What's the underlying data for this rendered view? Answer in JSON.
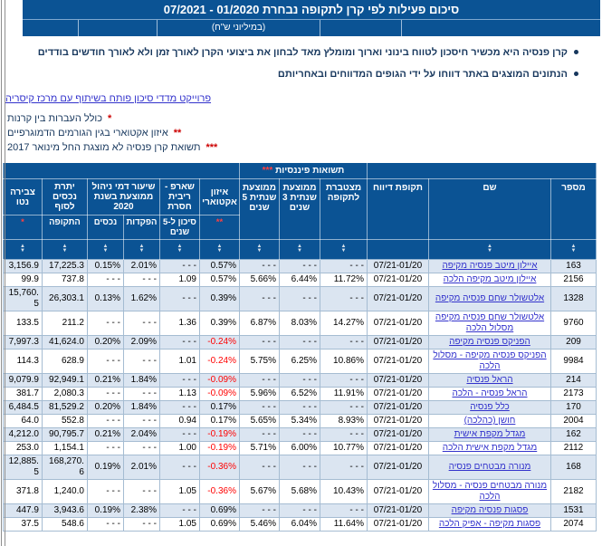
{
  "page": {
    "title": "סיכום פעילות לפי קרן לתקופה נבחרת 01/2020 - 07/2021",
    "subtitle": "(במיליוני ש\"ח)",
    "bullets": [
      "קרן פנסיה היא מכשיר חיסכון לטווח בינוני וארוך ומומלץ מאד לבחון את ביצועי הקרן לאורך זמן ולא לאורך חודשים בודדים",
      "הנתונים המוצגים באתר דווחו על ידי הגופים המדווחים ובאחריותם"
    ],
    "project_link": "פרוייקט מדדי סיכון פותח בשיתוף עם מרכז קיסריה",
    "footnotes": [
      {
        "mark": "*",
        "text": "כולל העברות בין קרנות"
      },
      {
        "mark": "**",
        "text": "איזון אקטוארי בגין הגורמים הדמוגרפיים"
      },
      {
        "mark": "***",
        "text": "תשואת קרן פנסיה לא מוצגת החל מינואר 2017"
      }
    ]
  },
  "colors": {
    "header_blue": "#0b5394",
    "row_stripe": "#dbe5f1",
    "link_blue": "#3333cc",
    "negative_red": "#ff0000",
    "footnote_red": "#cc0000",
    "text_navy": "#17375d",
    "header_mark_red": "#ff4040"
  },
  "table": {
    "headers": {
      "num": "מספר",
      "name": "שם",
      "period": "תקופת דיווח",
      "returns_group": "תשואות פיננסיות",
      "returns_mark": "***",
      "cumulative": "מצטברת לתקופה",
      "avg3": "ממוצעת שנתית 3 שנים",
      "avg5": "ממוצעת שנתית 5 שנים",
      "actuarial": "איזון אקטוארי",
      "actuarial_mark": "**",
      "sharpe": "שארפ - ריבית חסרת",
      "sharpe_sub": "סיכון ל-5 שנים",
      "fees_group": "שיעור דמי ניהול ממוצעת בשנת 2020",
      "fee_deposits": "הפקדות",
      "fee_assets": "נכסים",
      "assets": "יתרת נכסים לסוף",
      "assets_sub": "התקופה",
      "net": "צבירה נטו",
      "net_mark": "*"
    },
    "rows": [
      {
        "num": "163",
        "name": "איילון מיטב פנסיה מקיפה",
        "period": "07/21-01/20",
        "cum": "- - -",
        "y3": "- - -",
        "y5": "- - -",
        "act": "0.57%",
        "sharpe": "- - -",
        "fdep": "2.01%",
        "fast": "0.15%",
        "assets": "17,225.3",
        "net": "3,156.9"
      },
      {
        "num": "2156",
        "name": "איילון מיטב מקיפה הלכה",
        "period": "07/21-01/20",
        "cum": "11.72%",
        "y3": "6.44%",
        "y5": "5.66%",
        "act": "0.57%",
        "sharpe": "1.09",
        "fdep": "- - -",
        "fast": "- - -",
        "assets": "737.8",
        "net": "99.9"
      },
      {
        "num": "1328",
        "name": "אלטשולר שחם פנסיה מקיפה",
        "period": "07/21-01/20",
        "cum": "- - -",
        "y3": "- - -",
        "y5": "- - -",
        "act": "0.39%",
        "sharpe": "- - -",
        "fdep": "1.62%",
        "fast": "0.13%",
        "assets": "26,303.1",
        "net": "15,760.5"
      },
      {
        "num": "9760",
        "name": "אלטשולר שחם פנסיה מקיפה מסלול הלכה",
        "period": "07/21-01/20",
        "cum": "14.27%",
        "y3": "8.03%",
        "y5": "6.87%",
        "act": "0.39%",
        "sharpe": "1.36",
        "fdep": "- - -",
        "fast": "- - -",
        "assets": "211.2",
        "net": "133.5"
      },
      {
        "num": "209",
        "name": "הפניקס פנסיה מקיפה",
        "period": "07/21-01/20",
        "cum": "- - -",
        "y3": "- - -",
        "y5": "- - -",
        "act": "-0.24%",
        "sharpe": "- - -",
        "fdep": "2.09%",
        "fast": "0.20%",
        "assets": "41,624.0",
        "net": "7,997.3"
      },
      {
        "num": "9984",
        "name": "הפניקס פנסיה מקיפה - מסלול הלכה",
        "period": "07/21-01/20",
        "cum": "10.86%",
        "y3": "6.25%",
        "y5": "5.75%",
        "act": "-0.24%",
        "sharpe": "1.01",
        "fdep": "- - -",
        "fast": "- - -",
        "assets": "628.9",
        "net": "114.3"
      },
      {
        "num": "214",
        "name": "הראל פנסיה",
        "period": "07/21-01/20",
        "cum": "- - -",
        "y3": "- - -",
        "y5": "- - -",
        "act": "-0.09%",
        "sharpe": "- - -",
        "fdep": "1.84%",
        "fast": "0.21%",
        "assets": "92,949.1",
        "net": "9,079.9"
      },
      {
        "num": "2173",
        "name": "הראל פנסיה - הלכה",
        "period": "07/21-01/20",
        "cum": "11.91%",
        "y3": "6.52%",
        "y5": "5.96%",
        "act": "-0.09%",
        "sharpe": "1.13",
        "fdep": "- - -",
        "fast": "- - -",
        "assets": "2,080.3",
        "net": "381.7"
      },
      {
        "num": "170",
        "name": "כלל פנסיה",
        "period": "07/21-01/20",
        "cum": "- - -",
        "y3": "- - -",
        "y5": "- - -",
        "act": "0.17%",
        "sharpe": "- - -",
        "fdep": "1.84%",
        "fast": "0.20%",
        "assets": "81,529.2",
        "net": "6,484.5"
      },
      {
        "num": "2004",
        "name": "חושן (כהלכה)",
        "period": "07/21-01/20",
        "cum": "8.93%",
        "y3": "5.34%",
        "y5": "5.65%",
        "act": "0.17%",
        "sharpe": "0.94",
        "fdep": "- - -",
        "fast": "- - -",
        "assets": "552.8",
        "net": "64.0"
      },
      {
        "num": "162",
        "name": "מגדל מקפת אישית",
        "period": "07/21-01/20",
        "cum": "- - -",
        "y3": "- - -",
        "y5": "- - -",
        "act": "-0.19%",
        "sharpe": "- - -",
        "fdep": "2.04%",
        "fast": "0.21%",
        "assets": "90,795.7",
        "net": "4,212.0"
      },
      {
        "num": "2112",
        "name": "מגדל מקפת אישית הלכה",
        "period": "07/21-01/20",
        "cum": "10.77%",
        "y3": "6.00%",
        "y5": "5.71%",
        "act": "-0.19%",
        "sharpe": "1.00",
        "fdep": "- - -",
        "fast": "- - -",
        "assets": "1,154.1",
        "net": "253.0"
      },
      {
        "num": "168",
        "name": "מנורה מבטחים פנסיה",
        "period": "07/21-01/20",
        "cum": "- - -",
        "y3": "- - -",
        "y5": "- - -",
        "act": "-0.36%",
        "sharpe": "- - -",
        "fdep": "2.01%",
        "fast": "0.19%",
        "assets": "168,270.6",
        "net": "12,885.5"
      },
      {
        "num": "2182",
        "name": "מנורה מבטחים פנסיה - מסלול הלכה",
        "period": "07/21-01/20",
        "cum": "10.43%",
        "y3": "5.68%",
        "y5": "5.67%",
        "act": "-0.36%",
        "sharpe": "1.05",
        "fdep": "- - -",
        "fast": "- - -",
        "assets": "1,240.0",
        "net": "371.8"
      },
      {
        "num": "1531",
        "name": "פסגות פנסיה מקיפה",
        "period": "07/21-01/20",
        "cum": "- - -",
        "y3": "- - -",
        "y5": "- - -",
        "act": "0.69%",
        "sharpe": "- - -",
        "fdep": "2.38%",
        "fast": "0.19%",
        "assets": "3,943.6",
        "net": "447.9"
      },
      {
        "num": "2074",
        "name": "פסגות מקיפה - אפיק הלכה",
        "period": "07/21-01/20",
        "cum": "11.64%",
        "y3": "6.04%",
        "y5": "5.46%",
        "act": "0.69%",
        "sharpe": "1.05",
        "fdep": "- - -",
        "fast": "- - -",
        "assets": "548.6",
        "net": "37.5"
      }
    ]
  }
}
